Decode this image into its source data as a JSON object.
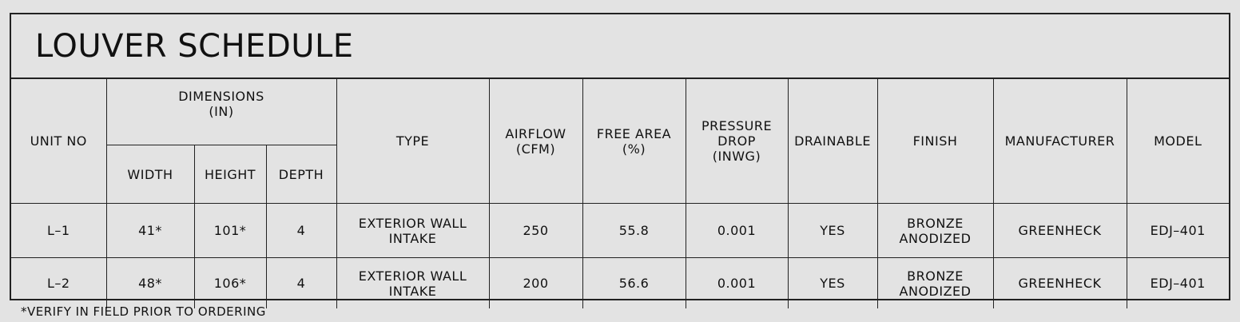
{
  "title": "LOUVER SCHEDULE",
  "headers": {
    "unit_no": "UNIT NO",
    "dimensions": "DIMENSIONS\n(IN)",
    "width": "WIDTH",
    "height": "HEIGHT",
    "depth": "DEPTH",
    "type": "TYPE",
    "airflow": "AIRFLOW\n(CFM)",
    "free_area": "FREE AREA\n(%)",
    "pressure_drop": "PRESSURE\nDROP\n(INWG)",
    "drainable": "DRAINABLE",
    "finish": "FINISH",
    "manufacturer": "MANUFACTURER",
    "model": "MODEL"
  },
  "rows": [
    {
      "unit_no": "L–1",
      "width": "41*",
      "height": "101*",
      "depth": "4",
      "type": "EXTERIOR WALL\nINTAKE",
      "airflow": "250",
      "free_area": "55.8",
      "pressure_drop": "0.001",
      "drainable": "YES",
      "finish": "BRONZE\nANODIZED",
      "manufacturer": "GREENHECK",
      "model": "EDJ–401"
    },
    {
      "unit_no": "L–2",
      "width": "48*",
      "height": "106*",
      "depth": "4",
      "type": "EXTERIOR WALL\nINTAKE",
      "airflow": "200",
      "free_area": "56.6",
      "pressure_drop": "0.001",
      "drainable": "YES",
      "finish": "BRONZE\nANODIZED",
      "manufacturer": "GREENHECK",
      "model": "EDJ–401"
    }
  ],
  "footnote": "*VERIFY IN FIELD PRIOR TO ORDERING"
}
